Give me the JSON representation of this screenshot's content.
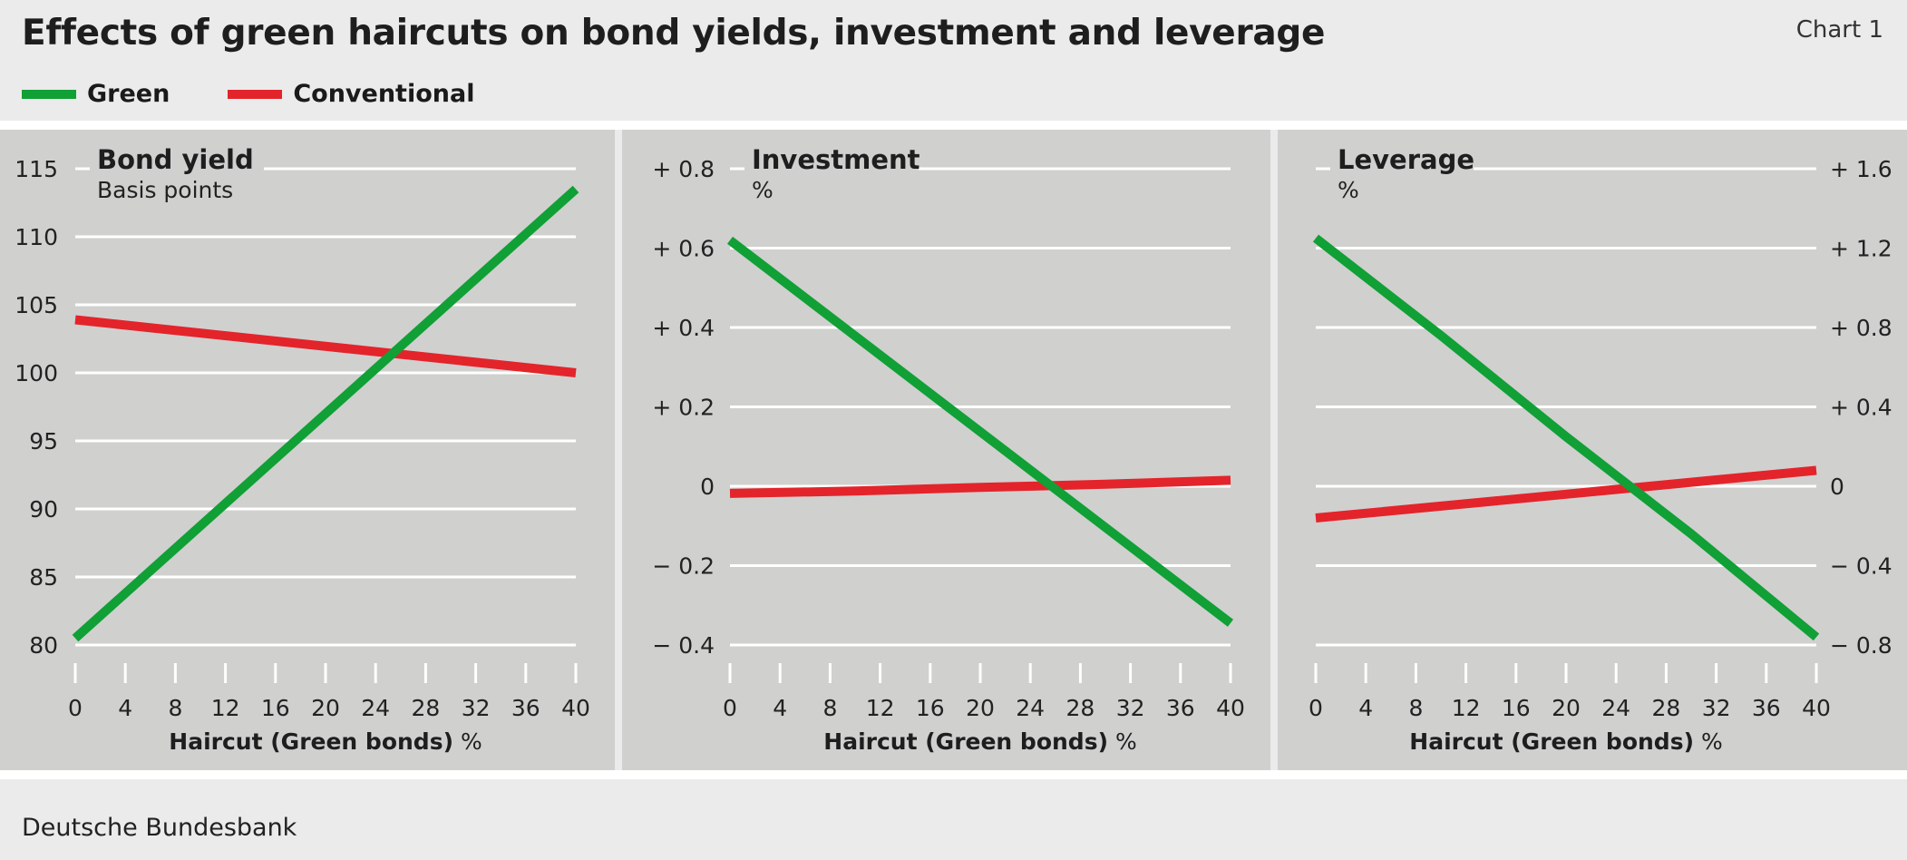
{
  "header": {
    "title": "Effects of green haircuts on bond yields, investment and leverage",
    "chart_number": "Chart 1"
  },
  "legend": [
    {
      "label": "Green",
      "color": "#10a035"
    },
    {
      "label": "Conventional",
      "color": "#e3242b"
    }
  ],
  "footer": {
    "source": "Deutsche Bundesbank"
  },
  "colors": {
    "panel_bg": "#d0d0cf",
    "page_bg": "#ebebeb",
    "grid": "#ffffff"
  },
  "chart_data": [
    {
      "type": "line",
      "title": "Bond yield",
      "unit": "Basis points",
      "xlabel_bold": "Haircut (Green bonds)",
      "xlabel_unit": "%",
      "y_axis_side": "left",
      "xlim": [
        0,
        40
      ],
      "ylim": [
        80,
        115
      ],
      "x_ticks": [
        0,
        4,
        8,
        12,
        16,
        20,
        24,
        28,
        32,
        36,
        40
      ],
      "y_ticks": [
        80,
        85,
        90,
        95,
        100,
        105,
        110,
        115
      ],
      "y_tick_labels": [
        "80",
        "85",
        "90",
        "95",
        "100",
        "105",
        "110",
        "115"
      ],
      "grid": true,
      "series": [
        {
          "name": "Green",
          "x": [
            0,
            40
          ],
          "y": [
            80.5,
            113.5
          ]
        },
        {
          "name": "Conventional",
          "x": [
            0,
            40
          ],
          "y": [
            103.9,
            100.0
          ]
        }
      ]
    },
    {
      "type": "line",
      "title": "Investment",
      "unit": "%",
      "xlabel_bold": "Haircut (Green bonds)",
      "xlabel_unit": "%",
      "y_axis_side": "left",
      "xlim": [
        0,
        40
      ],
      "ylim": [
        -0.4,
        0.8
      ],
      "x_ticks": [
        0,
        4,
        8,
        12,
        16,
        20,
        24,
        28,
        32,
        36,
        40
      ],
      "y_ticks": [
        -0.4,
        -0.2,
        0,
        0.2,
        0.4,
        0.6,
        0.8
      ],
      "y_tick_labels": [
        "− 0.4",
        "− 0.2",
        "0",
        "+ 0.2",
        "+ 0.4",
        "+ 0.6",
        "+ 0.8"
      ],
      "grid": true,
      "series": [
        {
          "name": "Green",
          "x": [
            0,
            40
          ],
          "y": [
            0.62,
            -0.345
          ]
        },
        {
          "name": "Conventional",
          "x": [
            0,
            10,
            20,
            30,
            40
          ],
          "y": [
            -0.018,
            -0.012,
            -0.003,
            0.005,
            0.015
          ]
        }
      ]
    },
    {
      "type": "line",
      "title": "Leverage",
      "unit": "%",
      "xlabel_bold": "Haircut (Green bonds)",
      "xlabel_unit": "%",
      "y_axis_side": "right",
      "xlim": [
        0,
        40
      ],
      "ylim": [
        -0.8,
        1.6
      ],
      "x_ticks": [
        0,
        4,
        8,
        12,
        16,
        20,
        24,
        28,
        32,
        36,
        40
      ],
      "y_ticks": [
        -0.8,
        -0.4,
        0,
        0.4,
        0.8,
        1.2,
        1.6
      ],
      "y_tick_labels": [
        "− 0.8",
        "− 0.4",
        "0",
        "+ 0.4",
        "+ 0.8",
        "+ 1.2",
        "+ 1.6"
      ],
      "grid": true,
      "series": [
        {
          "name": "Green",
          "x": [
            0,
            10,
            20,
            30,
            40
          ],
          "y": [
            1.25,
            0.76,
            0.25,
            -0.24,
            -0.76
          ]
        },
        {
          "name": "Conventional",
          "x": [
            0,
            10,
            20,
            30,
            40
          ],
          "y": [
            -0.16,
            -0.1,
            -0.04,
            0.02,
            0.08
          ]
        }
      ]
    }
  ]
}
